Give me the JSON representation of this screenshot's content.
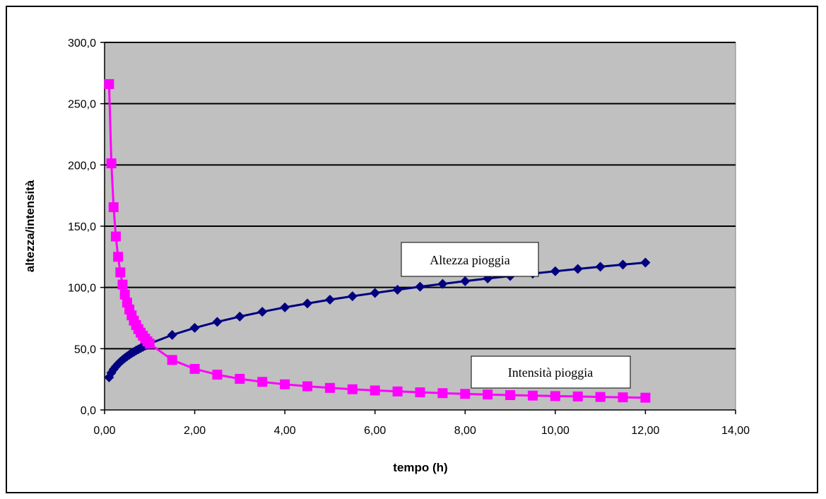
{
  "chart_data": {
    "type": "line",
    "title": "",
    "xlabel": "tempo (h)",
    "ylabel": "altezza/intensità",
    "xlim": [
      0,
      14
    ],
    "ylim": [
      0,
      300
    ],
    "xticks": [
      "0,00",
      "2,00",
      "4,00",
      "6,00",
      "8,00",
      "10,00",
      "12,00",
      "14,00"
    ],
    "yticks": [
      "0,0",
      "50,0",
      "100,0",
      "150,0",
      "200,0",
      "250,0",
      "300,0"
    ],
    "grid": "horizontal",
    "plot_background": "#c0c0c0",
    "x": [
      0.1,
      0.15,
      0.2,
      0.25,
      0.3,
      0.35,
      0.4,
      0.45,
      0.5,
      0.55,
      0.6,
      0.65,
      0.7,
      0.75,
      0.8,
      0.85,
      0.9,
      0.95,
      1.0,
      1.5,
      2.0,
      2.5,
      3.0,
      3.5,
      4.0,
      4.5,
      5.0,
      5.5,
      6.0,
      6.5,
      7.0,
      7.5,
      8.0,
      8.5,
      9.0,
      9.5,
      10.0,
      10.5,
      11.0,
      11.5,
      12.0
    ],
    "series": [
      {
        "color": "#000080",
        "marker": "diamond",
        "values": [
          26.6,
          30.3,
          33.1,
          35.4,
          37.5,
          39.3,
          40.9,
          42.4,
          43.8,
          45.1,
          46.3,
          47.4,
          48.5,
          49.5,
          50.5,
          51.5,
          52.4,
          53.2,
          54.1,
          61.2,
          67.0,
          71.9,
          76.2,
          80.1,
          83.7,
          86.9,
          90.0,
          92.8,
          95.5,
          98.1,
          100.6,
          102.9,
          105.1,
          107.3,
          109.3,
          111.3,
          113.2,
          115.1,
          116.9,
          118.6,
          120.3
        ]
      },
      {
        "color": "#ff00ff",
        "marker": "square",
        "values": [
          266.0,
          201.3,
          165.5,
          141.6,
          125.0,
          112.3,
          102.3,
          94.2,
          87.6,
          82.0,
          77.2,
          72.9,
          69.3,
          66.0,
          63.1,
          60.6,
          58.2,
          56.0,
          54.1,
          40.8,
          33.5,
          28.8,
          25.4,
          22.9,
          20.9,
          19.3,
          18.0,
          16.9,
          15.9,
          15.1,
          14.4,
          13.7,
          13.1,
          12.6,
          12.1,
          11.7,
          11.3,
          11.0,
          10.6,
          10.3,
          10.0
        ]
      }
    ],
    "annotations": [
      {
        "text": "Altezza pioggia"
      },
      {
        "text": "Intensità pioggia"
      }
    ]
  }
}
